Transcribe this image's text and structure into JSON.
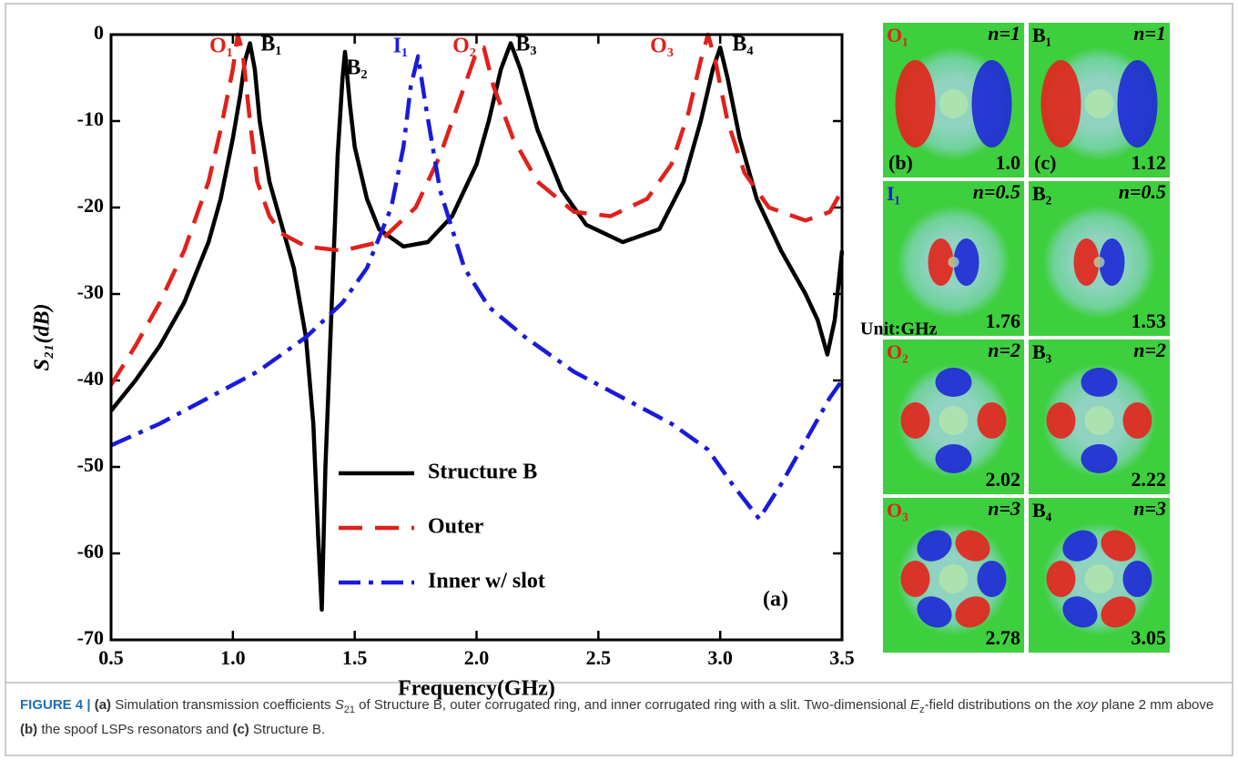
{
  "chart_data": {
    "type": "line",
    "xlabel": "Frequency(GHz)",
    "ylabel": "S₂₁(dB)",
    "panel_label": "(a)",
    "xlim": [
      0.5,
      3.5
    ],
    "ylim": [
      -70,
      0
    ],
    "xticks": [
      0.5,
      {
        "value": 1,
        "label": "1.0"
      },
      1.5,
      {
        "value": 2,
        "label": "2.0"
      },
      2.5,
      {
        "value": 3,
        "label": "3.0"
      },
      3.5
    ],
    "yticks": [
      -70,
      -60,
      -50,
      -40,
      -30,
      -20,
      -10,
      0
    ],
    "legend": "lower-center",
    "series": [
      {
        "name": "Structure B",
        "color": "#000000",
        "dash": "solid",
        "x": [
          0.5,
          0.6,
          0.7,
          0.8,
          0.9,
          0.95,
          1.0,
          1.03,
          1.05,
          1.07,
          1.09,
          1.11,
          1.15,
          1.2,
          1.25,
          1.3,
          1.33,
          1.35,
          1.365,
          1.38,
          1.41,
          1.43,
          1.45,
          1.46,
          1.48,
          1.5,
          1.55,
          1.6,
          1.7,
          1.8,
          1.9,
          2.0,
          2.05,
          2.1,
          2.14,
          2.18,
          2.25,
          2.35,
          2.45,
          2.6,
          2.75,
          2.85,
          2.92,
          2.97,
          3.0,
          3.03,
          3.08,
          3.15,
          3.25,
          3.35,
          3.4,
          3.44,
          3.47,
          3.5
        ],
        "values": [
          -43.5,
          -40,
          -36,
          -31,
          -24,
          -19,
          -12,
          -7,
          -3,
          -1,
          -4,
          -10,
          -17,
          -22,
          -27,
          -35,
          -45,
          -58,
          -66.5,
          -50,
          -28,
          -14,
          -5,
          -2,
          -8,
          -13,
          -19,
          -22.5,
          -24.5,
          -24,
          -21,
          -15,
          -10,
          -4,
          -1,
          -4,
          -11,
          -18,
          -22,
          -24,
          -22.5,
          -17,
          -10,
          -4,
          -1.5,
          -5,
          -12,
          -19,
          -25,
          -30,
          -33,
          -37,
          -33,
          -25
        ]
      },
      {
        "name": "Outer",
        "color": "#e0201b",
        "dash": "dashed",
        "x": [
          0.5,
          0.6,
          0.7,
          0.8,
          0.9,
          0.95,
          1.0,
          1.02,
          1.04,
          1.07,
          1.1,
          1.15,
          1.2,
          1.3,
          1.45,
          1.6,
          1.75,
          1.85,
          1.95,
          2.0,
          2.03,
          2.07,
          2.15,
          2.25,
          2.4,
          2.55,
          2.7,
          2.8,
          2.87,
          2.92,
          2.95,
          2.98,
          3.03,
          3.1,
          3.2,
          3.35,
          3.45,
          3.5
        ],
        "values": [
          -40.5,
          -36,
          -31,
          -25,
          -17,
          -11,
          -4,
          0,
          -2,
          -10,
          -17,
          -21,
          -23,
          -24.5,
          -25,
          -24,
          -20,
          -14,
          -6,
          -2,
          -1.5,
          -6,
          -12,
          -17,
          -20.5,
          -21,
          -19,
          -15,
          -9,
          -3,
          0,
          -3,
          -10,
          -16,
          -20,
          -21.5,
          -20.5,
          -18
        ]
      },
      {
        "name": "Inner w/ slot",
        "color": "#1a1adb",
        "dash": "dashdot",
        "x": [
          0.5,
          0.7,
          0.9,
          1.1,
          1.3,
          1.45,
          1.55,
          1.65,
          1.7,
          1.73,
          1.76,
          1.79,
          1.85,
          1.95,
          2.05,
          2.2,
          2.4,
          2.6,
          2.8,
          2.95,
          3.05,
          3.16,
          3.25,
          3.35,
          3.45,
          3.5
        ],
        "values": [
          -47.5,
          -45,
          -42,
          -39,
          -35,
          -31,
          -27,
          -20,
          -13,
          -6,
          -2.5,
          -8,
          -18,
          -27,
          -31.5,
          -35,
          -39,
          -42,
          -45,
          -48,
          -52,
          -56,
          -52,
          -47,
          -42,
          -40
        ]
      }
    ],
    "annotations": [
      {
        "text": "O₁",
        "color": "#e0201b"
      },
      {
        "text": "B₁",
        "color": "#000000"
      },
      {
        "text": "B₂",
        "color": "#000000"
      },
      {
        "text": "I₁",
        "color": "#1a1adb"
      },
      {
        "text": "O₂",
        "color": "#e0201b"
      },
      {
        "text": "B₃",
        "color": "#000000"
      },
      {
        "text": "O₃",
        "color": "#e0201b"
      },
      {
        "text": "B₄",
        "color": "#000000"
      }
    ]
  },
  "field_panels": {
    "unit": "Unit:GHz",
    "panels": [
      {
        "mode": "O₁",
        "mode_color": "#e0201b",
        "n": "n=1",
        "freq": "1.0",
        "tag": "(b)"
      },
      {
        "mode": "B₁",
        "mode_color": "#000000",
        "n": "n=1",
        "freq": "1.12",
        "tag": "(c)"
      },
      {
        "mode": "I₁",
        "mode_color": "#1a1adb",
        "n": "n=0.5",
        "freq": "1.76"
      },
      {
        "mode": "B₂",
        "mode_color": "#000000",
        "n": "n=0.5",
        "freq": "1.53"
      },
      {
        "mode": "O₂",
        "mode_color": "#e0201b",
        "n": "n=2",
        "freq": "2.02"
      },
      {
        "mode": "B₃",
        "mode_color": "#000000",
        "n": "n=2",
        "freq": "2.22"
      },
      {
        "mode": "O₃",
        "mode_color": "#e0201b",
        "n": "n=3",
        "freq": "2.78"
      },
      {
        "mode": "B₄",
        "mode_color": "#000000",
        "n": "n=3",
        "freq": "3.05"
      }
    ]
  },
  "caption": {
    "runs": [
      {
        "text": "FIGURE 4 | ",
        "style": "bold"
      },
      {
        "text": "(a)",
        "style": "bold"
      },
      {
        "text": " Simulation transmission coefficients ",
        "style": "normal"
      },
      {
        "text": "S",
        "style": "italic"
      },
      {
        "text": "21",
        "style": "sub"
      },
      {
        "text": " of Structure B, outer corrugated ring, and inner corrugated ring with a slit. Two-dimensional ",
        "style": "normal"
      },
      {
        "text": "E",
        "style": "italic"
      },
      {
        "text": "z",
        "style": "sub"
      },
      {
        "text": "-field distributions on the ",
        "style": "normal"
      },
      {
        "text": "xoy",
        "style": "italic"
      },
      {
        "text": " plane 2 mm above ",
        "style": "normal"
      },
      {
        "text": "(b)",
        "style": "bold"
      },
      {
        "text": " the spoof LSPs resonators and ",
        "style": "normal"
      },
      {
        "text": "(c)",
        "style": "bold"
      },
      {
        "text": " Structure B.",
        "style": "normal"
      }
    ]
  }
}
